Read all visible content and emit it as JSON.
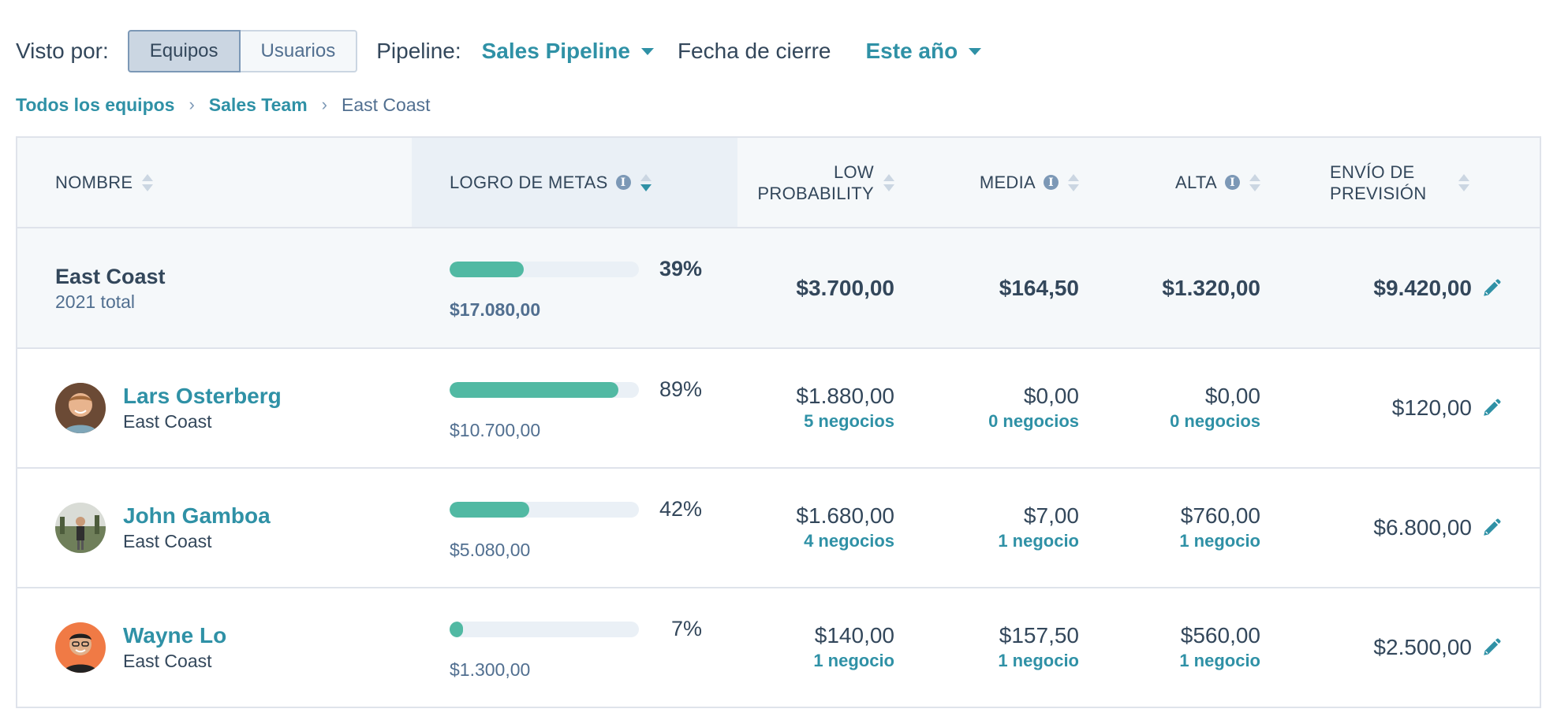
{
  "filters": {
    "viewed_by_label": "Visto por:",
    "seg_equipos": "Equipos",
    "seg_usuarios": "Usuarios",
    "pipeline_label": "Pipeline:",
    "pipeline_value": "Sales Pipeline",
    "close_date_label": "Fecha de cierre",
    "close_date_value": "Este año"
  },
  "breadcrumb": {
    "all_teams": "Todos los equipos",
    "sales_team": "Sales Team",
    "current": "East Coast"
  },
  "columns": {
    "nombre": "NOMBRE",
    "logro": "LOGRO DE METAS",
    "low_1": "LOW",
    "low_2": "PROBABILITY",
    "media": "MEDIA",
    "alta": "ALTA",
    "envio_1": "ENVÍO DE",
    "envio_2": "PREVISIÓN"
  },
  "total": {
    "name": "East Coast",
    "sub": "2021 total",
    "goal_pct_label": "39%",
    "goal_progress": 0.39,
    "goal_amount": "$17.080,00",
    "low": "$3.700,00",
    "media": "$164,50",
    "alta": "$1.320,00",
    "envio": "$9.420,00"
  },
  "rows": [
    {
      "name": "Lars Osterberg",
      "team": "East Coast",
      "goal_pct_label": "89%",
      "goal_progress": 0.89,
      "goal_amount": "$10.700,00",
      "low": "$1.880,00",
      "low_deals": "5 negocios",
      "media": "$0,00",
      "media_deals": "0 negocios",
      "alta": "$0,00",
      "alta_deals": "0 negocios",
      "envio": "$120,00"
    },
    {
      "name": "John Gamboa",
      "team": "East Coast",
      "goal_pct_label": "42%",
      "goal_progress": 0.42,
      "goal_amount": "$5.080,00",
      "low": "$1.680,00",
      "low_deals": "4 negocios",
      "media": "$7,00",
      "media_deals": "1 negocio",
      "alta": "$760,00",
      "alta_deals": "1 negocio",
      "envio": "$6.800,00"
    },
    {
      "name": "Wayne Lo",
      "team": "East Coast",
      "goal_pct_label": "7%",
      "goal_progress": 0.07,
      "goal_amount": "$1.300,00",
      "low": "$140,00",
      "low_deals": "1 negocio",
      "media": "$157,50",
      "media_deals": "1 negocio",
      "alta": "$560,00",
      "alta_deals": "1 negocio",
      "envio": "$2.500,00"
    }
  ],
  "icons": {
    "info": "info-icon",
    "sort": "sort-icon",
    "edit": "pencil-icon",
    "caret": "caret-down-icon"
  },
  "colors": {
    "accent": "#2f91a6",
    "bar_fill": "#51b9a3",
    "text": "#33475b"
  }
}
